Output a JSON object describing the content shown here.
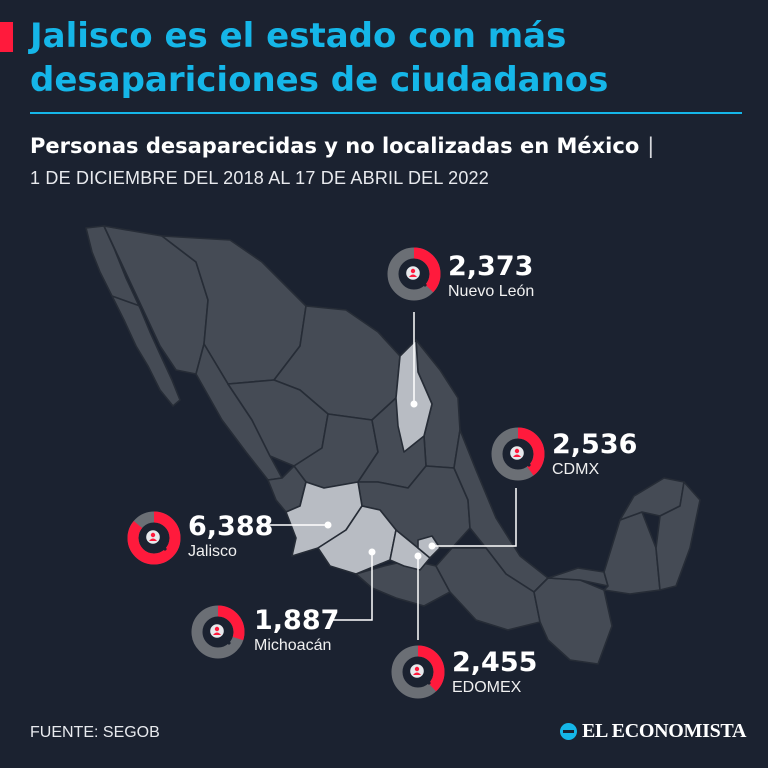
{
  "headline": {
    "line1": "Jalisco es el estado con más",
    "line2": "desapariciones de ciudadanos"
  },
  "subtitle": "Personas desaparecidas y no localizadas en México",
  "subtitle_separator": "|",
  "date_range": "1 DE DICIEMBRE DEL 2018 AL 17 DE ABRIL DEL 2022",
  "colors": {
    "background": "#1b2230",
    "headline": "#15b6e8",
    "accent": "#ff1a3c",
    "map_states": "#454b55",
    "highlighted_states": "#b8bcc3",
    "ring_track": "#6b6f75"
  },
  "icon": "magnifier-over-person-icon",
  "callouts": [
    {
      "state": "Nuevo León",
      "value": "2,373",
      "share": 0.37
    },
    {
      "state": "CDMX",
      "value": "2,536",
      "share": 0.4
    },
    {
      "state": "Jalisco",
      "value": "6,388",
      "share": 0.86
    },
    {
      "state": "Michoacán",
      "value": "1,887",
      "share": 0.3
    },
    {
      "state": "EDOMEX",
      "value": "2,455",
      "share": 0.38
    }
  ],
  "source": "FUENTE: SEGOB",
  "brand": "EL ECONOMISTA"
}
